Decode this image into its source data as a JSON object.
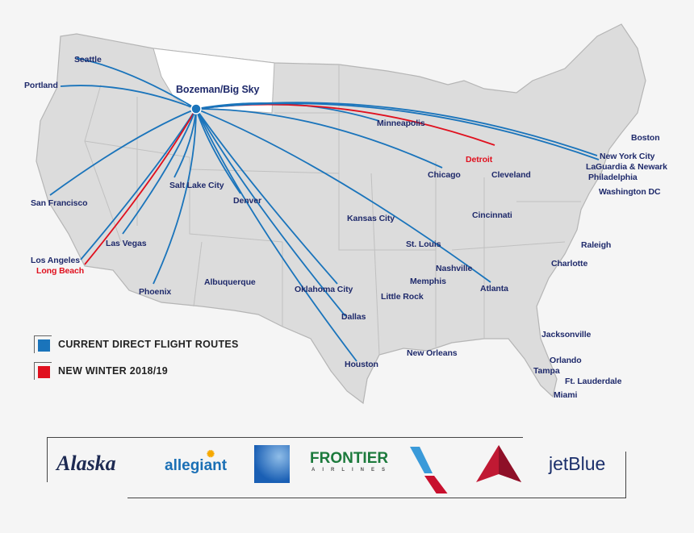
{
  "hub": "Bozeman/Big Sky",
  "colors": {
    "current": "#1a74bb",
    "new": "#e0101e",
    "land": "#dcdcdc",
    "hub_state": "#ffffff",
    "label": "#1f2a6b"
  },
  "cities": [
    "Seattle",
    "Portland",
    "San Francisco",
    "Los Angeles",
    "Long Beach",
    "Las Vegas",
    "Phoenix",
    "Salt Lake City",
    "Denver",
    "Albuquerque",
    "Oklahoma City",
    "Dallas",
    "Houston",
    "Kansas City",
    "St. Louis",
    "Memphis",
    "Little Rock",
    "New Orleans",
    "Nashville",
    "Atlanta",
    "Minneapolis",
    "Chicago",
    "Detroit",
    "Cleveland",
    "Cincinnati",
    "Boston",
    "New York City",
    "LaGuardia & Newark",
    "Philadelphia",
    "Washington DC",
    "Raleigh",
    "Charlotte",
    "Jacksonville",
    "Orlando",
    "Tampa",
    "Ft. Lauderdale",
    "Miami"
  ],
  "routes": [
    {
      "to": "Seattle",
      "type": "current"
    },
    {
      "to": "Portland",
      "type": "current"
    },
    {
      "to": "San Francisco",
      "type": "current"
    },
    {
      "to": "Los Angeles",
      "type": "current"
    },
    {
      "to": "Long Beach",
      "type": "new"
    },
    {
      "to": "Las Vegas",
      "type": "current"
    },
    {
      "to": "Phoenix",
      "type": "current"
    },
    {
      "to": "Salt Lake City",
      "type": "current"
    },
    {
      "to": "Denver",
      "type": "current"
    },
    {
      "to": "Dallas",
      "type": "current"
    },
    {
      "to": "Houston",
      "type": "current"
    },
    {
      "to": "Oklahoma City",
      "type": "current"
    },
    {
      "to": "Atlanta",
      "type": "current"
    },
    {
      "to": "Chicago",
      "type": "current"
    },
    {
      "to": "Minneapolis",
      "type": "current"
    },
    {
      "to": "Detroit",
      "type": "new"
    },
    {
      "to": "New York City",
      "type": "current"
    },
    {
      "to": "LaGuardia & Newark",
      "type": "current"
    }
  ],
  "legend": [
    {
      "label": "CURRENT DIRECT FLIGHT ROUTES",
      "color": "#1a74bb"
    },
    {
      "label": "NEW WINTER 2018/19",
      "color": "#e0101e"
    }
  ],
  "airlines": [
    "Alaska",
    "allegiant",
    "United",
    "FRONTIER",
    "AIRLINES",
    "American",
    "Delta",
    "jetBlue"
  ]
}
